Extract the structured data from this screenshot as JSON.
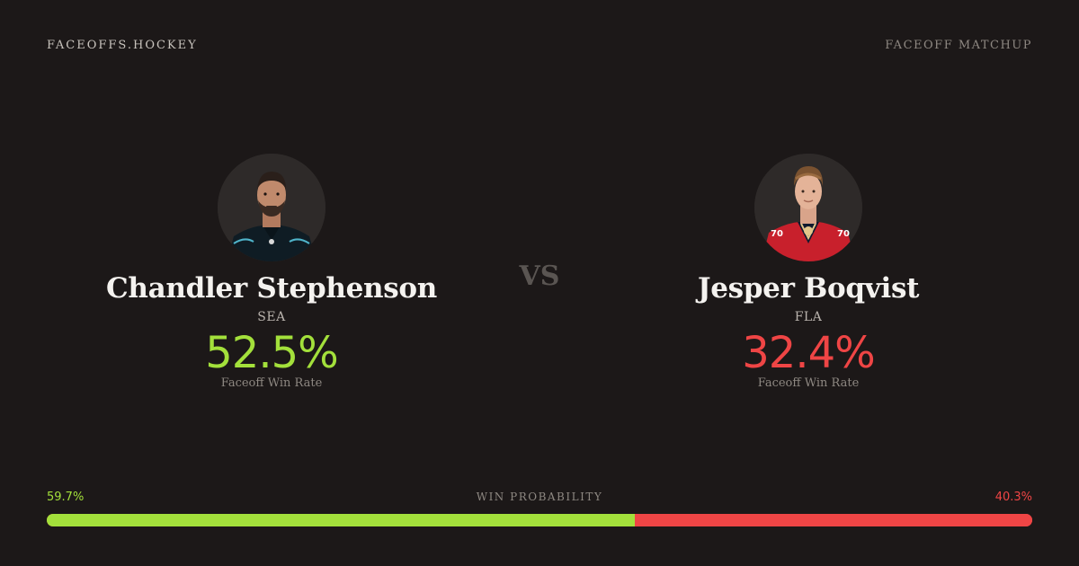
{
  "brand": "FACEOFFS.HOCKEY",
  "page_label": "FACEOFF MATCHUP",
  "vs": "VS",
  "players": [
    {
      "name": "Chandler Stephenson",
      "team": "SEA",
      "rate": "52.5%",
      "rate_label": "Faceoff Win Rate",
      "color": "#a3e03b"
    },
    {
      "name": "Jesper Boqvist",
      "team": "FLA",
      "rate": "32.4%",
      "rate_label": "Faceoff Win Rate",
      "color": "#ef4545"
    }
  ],
  "win_probability": {
    "label": "WIN PROBABILITY",
    "left": "59.7%",
    "right": "40.3%",
    "left_fraction": 0.597,
    "left_color": "#a3e03b",
    "right_color": "#ef4545"
  }
}
